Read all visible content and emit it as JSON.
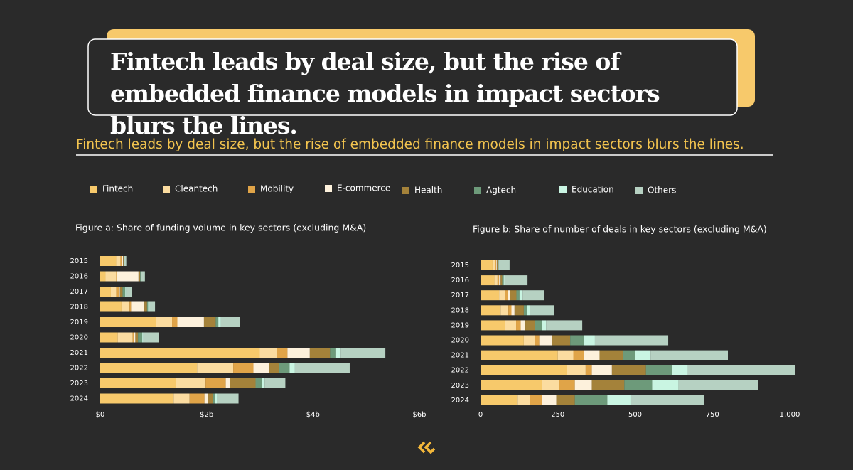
{
  "title": "Fintech leads by deal size, but the rise of embedded finance models in impact sectors blurs the lines.",
  "subtitle": "Fintech leads by deal size, but the rise of embedded finance models in impact sectors blurs the lines.",
  "legend": [
    {
      "name": "Fintech",
      "color": "#f7c96b"
    },
    {
      "name": "Cleantech",
      "color": "#fbdca0"
    },
    {
      "name": "Mobility",
      "color": "#e0a448"
    },
    {
      "name": "E-commerce",
      "color": "#fdf1dc"
    },
    {
      "name": "Health",
      "color": "#a4823a"
    },
    {
      "name": "Agtech",
      "color": "#6d9a7a"
    },
    {
      "name": "Education",
      "color": "#c9f5e2"
    },
    {
      "name": "Others",
      "color": "#b6d1c2"
    }
  ],
  "chart_data": [
    {
      "type": "bar",
      "orientation": "horizontal",
      "stacked": true,
      "title": "Figure a: Share of funding volume in key sectors (excluding M&A)",
      "categories": [
        "2015",
        "2016",
        "2017",
        "2018",
        "2019",
        "2020",
        "2021",
        "2022",
        "2023",
        "2024"
      ],
      "series": [
        {
          "values": [
            0.3,
            0.1,
            0.2,
            0.4,
            1.05,
            0.33,
            3.0,
            1.82,
            1.42,
            1.38
          ]
        },
        {
          "values": [
            0.08,
            0.2,
            0.1,
            0.15,
            0.3,
            0.28,
            0.32,
            0.68,
            0.56,
            0.3
          ]
        },
        {
          "values": [
            0.03,
            0.02,
            0.05,
            0.03,
            0.1,
            0.03,
            0.2,
            0.38,
            0.38,
            0.28
          ]
        },
        {
          "values": [
            0.02,
            0.4,
            0.02,
            0.25,
            0.5,
            0.02,
            0.42,
            0.3,
            0.08,
            0.06
          ]
        },
        {
          "values": [
            0.01,
            0.03,
            0.05,
            0.05,
            0.22,
            0.05,
            0.38,
            0.18,
            0.48,
            0.1
          ]
        },
        {
          "values": [
            0.01,
            0.01,
            0.05,
            0.02,
            0.05,
            0.08,
            0.1,
            0.2,
            0.12,
            0.03
          ]
        },
        {
          "values": [
            0.01,
            0.01,
            0.02,
            0.03,
            0.05,
            0.02,
            0.1,
            0.1,
            0.05,
            0.05
          ]
        },
        {
          "values": [
            0.03,
            0.07,
            0.1,
            0.1,
            0.36,
            0.29,
            0.84,
            1.03,
            0.39,
            0.4
          ]
        }
      ],
      "xlim": [
        0,
        6
      ],
      "xticks": [
        {
          "value": 0,
          "label": "$0"
        },
        {
          "value": 2,
          "label": "$2b"
        },
        {
          "value": 4,
          "label": "$4b"
        },
        {
          "value": 6,
          "label": "$6b"
        }
      ]
    },
    {
      "type": "bar",
      "orientation": "horizontal",
      "stacked": true,
      "title": "Figure b: Share of number of deals in key sectors (excluding M&A)",
      "categories": [
        "2015",
        "2016",
        "2017",
        "2018",
        "2019",
        "2020",
        "2021",
        "2022",
        "2023",
        "2024"
      ],
      "series": [
        {
          "values": [
            39,
            45,
            60,
            65,
            80,
            140,
            250,
            280,
            200,
            120
          ]
        },
        {
          "values": [
            7,
            10,
            20,
            25,
            35,
            35,
            50,
            60,
            55,
            40
          ]
        },
        {
          "values": [
            5,
            5,
            8,
            10,
            15,
            15,
            35,
            20,
            50,
            40
          ]
        },
        {
          "values": [
            2,
            5,
            8,
            10,
            15,
            40,
            50,
            65,
            55,
            45
          ]
        },
        {
          "values": [
            4,
            5,
            20,
            30,
            30,
            60,
            75,
            110,
            105,
            60
          ]
        },
        {
          "values": [
            1,
            5,
            10,
            10,
            25,
            45,
            40,
            85,
            90,
            105
          ]
        },
        {
          "values": [
            1,
            2,
            10,
            10,
            12,
            35,
            50,
            50,
            85,
            75
          ]
        },
        {
          "values": [
            35,
            75,
            69,
            77,
            117,
            237,
            250,
            347,
            257,
            237
          ]
        }
      ],
      "xlim": [
        0,
        1000
      ],
      "xticks": [
        0,
        250,
        500,
        750,
        {
          "value": 1000,
          "label": "1,000"
        }
      ]
    }
  ]
}
